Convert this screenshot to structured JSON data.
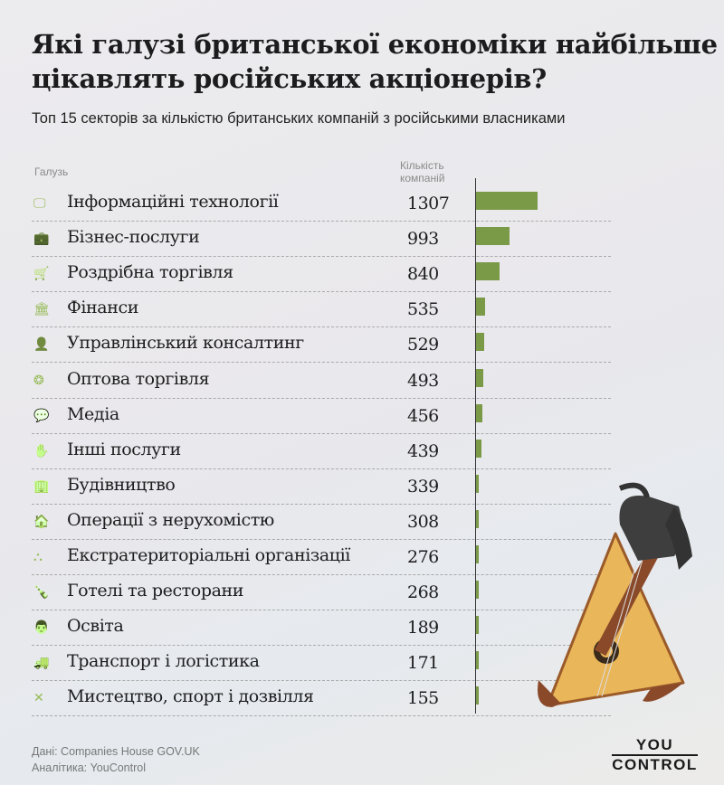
{
  "title": "Які галузі британської економіки найбільше цікавлять російських акціонерів?",
  "subtitle": "Топ 15 секторів за кількістю британських компаній з російськими власниками",
  "columns": {
    "industry": "Галузь",
    "count_line1": "Кількість",
    "count_line2": "компаній"
  },
  "colors": {
    "bar": "#7a9a48",
    "icon": "#7a9a48"
  },
  "chart_data": {
    "type": "bar",
    "orientation": "horizontal",
    "categories": [
      "Інформаційні технології",
      "Бізнес-послуги",
      "Роздрібна торгівля",
      "Фінанси",
      "Управлінський консалтинг",
      "Оптова торгівля",
      "Медіа",
      "Інші послуги",
      "Будівництво",
      "Операції з нерухомістю",
      "Екстратериторіальні організації",
      "Готелі та ресторани",
      "Освіта",
      "Транспорт і логістика",
      "Мистецтво, спорт і дозвілля"
    ],
    "values": [
      1307,
      993,
      840,
      535,
      529,
      493,
      456,
      439,
      339,
      308,
      276,
      268,
      189,
      171,
      155
    ],
    "icons": [
      "monitor-icon",
      "briefcase-icon",
      "cart-icon",
      "bank-icon",
      "person-icon",
      "cubes-icon",
      "chat-icon",
      "hand-icon",
      "building-icon",
      "house-icon",
      "hierarchy-icon",
      "bottle-icon",
      "teacher-icon",
      "truck-icon",
      "tools-icon"
    ],
    "grid": false
  },
  "footer": {
    "source": "Дані: Companies House GOV.UK",
    "analytics": "Аналітика: YouControl"
  },
  "logo": {
    "line1": "YOU",
    "line2": "CONTROL"
  }
}
